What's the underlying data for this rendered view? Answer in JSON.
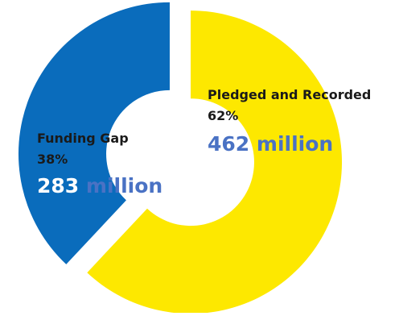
{
  "chart_data": {
    "type": "pie",
    "title": "",
    "slices": [
      {
        "name": "Pledged and Recorded",
        "percent_label": "62%",
        "percent": 62,
        "amount_label": "462 million",
        "amount": 462,
        "color": "#fde800"
      },
      {
        "name": "Funding Gap",
        "percent_label": "38%",
        "percent": 38,
        "amount_label": "283 million",
        "amount": 283,
        "color": "#0a6cbc"
      }
    ],
    "amount_split_chars": 3,
    "inner_radius_fraction": 0.42,
    "exploded": true
  }
}
